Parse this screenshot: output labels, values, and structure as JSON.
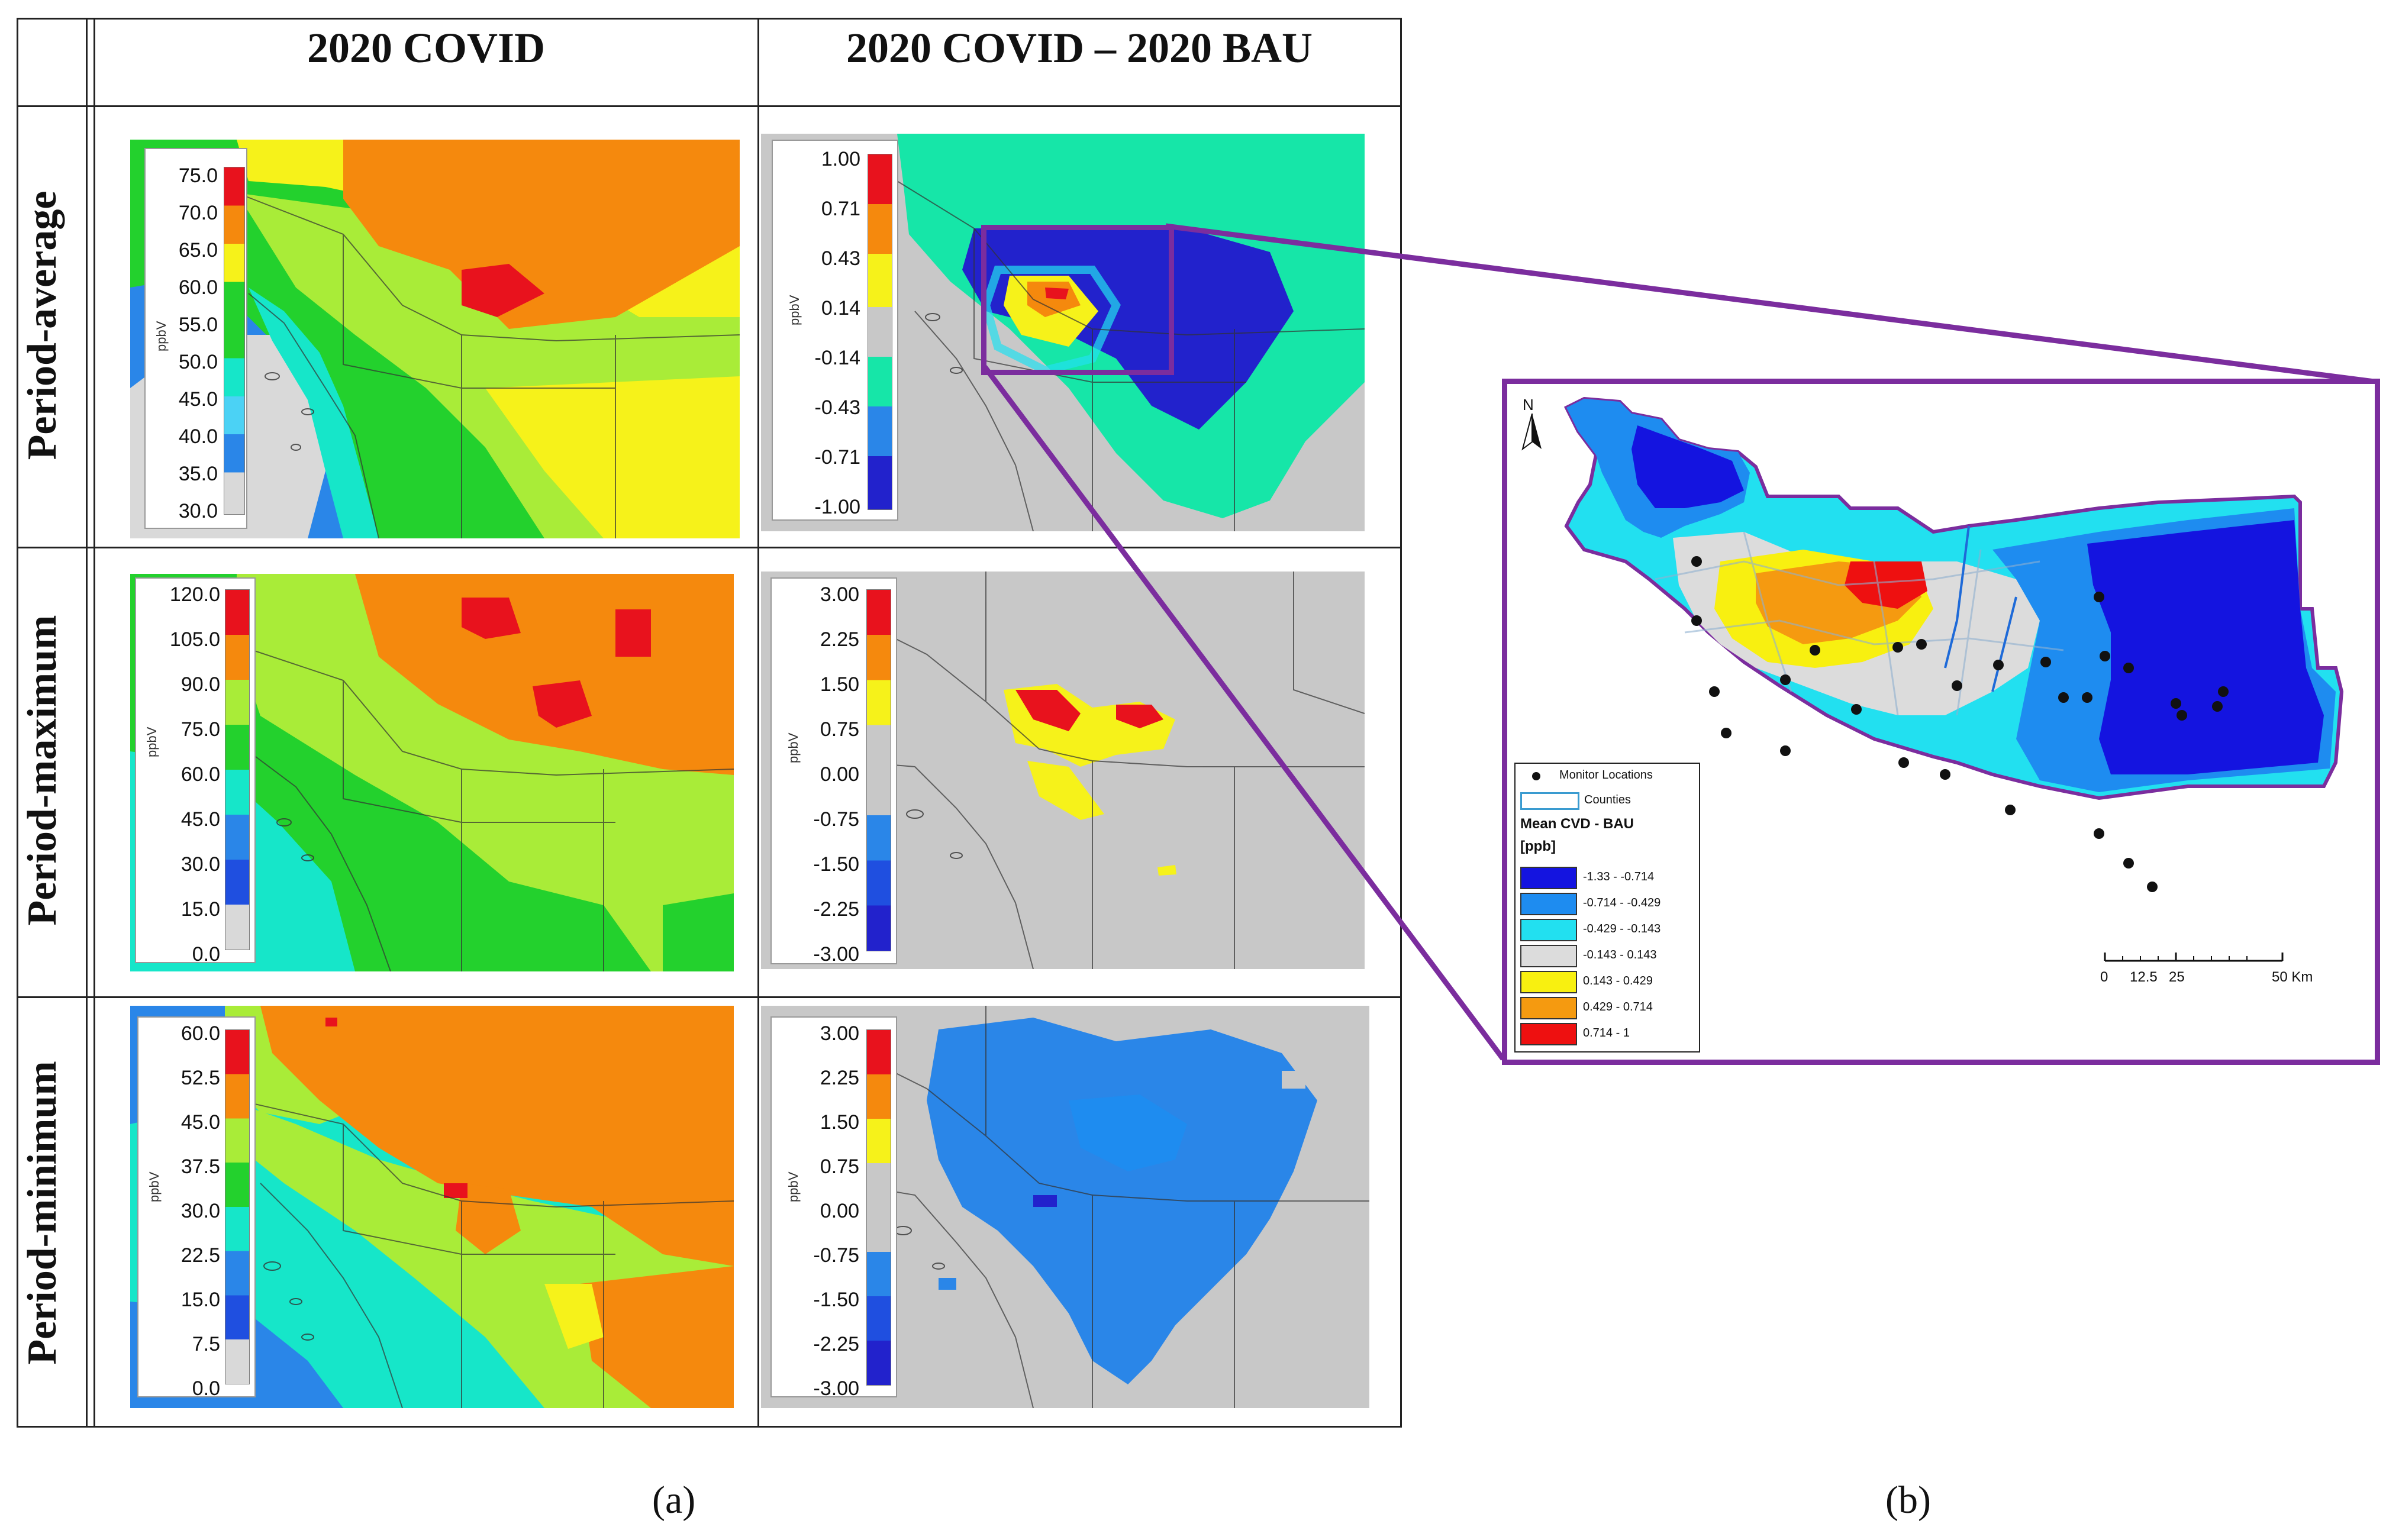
{
  "panel_a": {
    "column_headers": [
      "2020 COVID",
      "2020 COVID – 2020 BAU"
    ],
    "row_headers": [
      "Period-average",
      "Period-maximum",
      "Period-minimum"
    ],
    "unit_label": "ppbV",
    "legends": {
      "avg_covid": [
        "75.0",
        "70.0",
        "65.0",
        "60.0",
        "55.0",
        "50.0",
        "45.0",
        "40.0",
        "35.0",
        "30.0"
      ],
      "avg_diff": [
        "1.00",
        "0.71",
        "0.43",
        "0.14",
        "-0.14",
        "-0.43",
        "-0.71",
        "-1.00"
      ],
      "max_covid": [
        "120.0",
        "105.0",
        "90.0",
        "75.0",
        "60.0",
        "45.0",
        "30.0",
        "15.0",
        "0.0"
      ],
      "max_diff": [
        "3.00",
        "2.25",
        "1.50",
        "0.75",
        "0.00",
        "-0.75",
        "-1.50",
        "-2.25",
        "-3.00"
      ],
      "min_covid": [
        "60.0",
        "52.5",
        "45.0",
        "37.5",
        "30.0",
        "22.5",
        "15.0",
        "7.5",
        "0.0"
      ],
      "min_diff": [
        "3.00",
        "2.25",
        "1.50",
        "0.75",
        "0.00",
        "-0.75",
        "-1.50",
        "-2.25",
        "-3.00"
      ]
    },
    "covid_colors": [
      "#e8121d",
      "#f5890d",
      "#f6f21a",
      "#a9ec38",
      "#23d12d",
      "#16e6c9",
      "#4bd2f5",
      "#2a86e8",
      "#1f4fe0",
      "#d9d9d9"
    ],
    "diff_colors": [
      "#e8121d",
      "#f5890d",
      "#f6f21a",
      "#c8c8c8",
      "#2a86e8",
      "#1f4fe0",
      "#2222cc"
    ],
    "sub_label": "(a)"
  },
  "panel_b": {
    "north_label": "N",
    "legend": {
      "monitor_label": "Monitor Locations",
      "counties_label": "Counties",
      "title": "Mean CVD - BAU",
      "unit": "[ppb]",
      "classes": [
        {
          "label": "-1.33 - -0.714",
          "color": "#1414e0"
        },
        {
          "label": "-0.714 - -0.429",
          "color": "#1e8cf0"
        },
        {
          "label": "-0.429 - -0.143",
          "color": "#22e0f0"
        },
        {
          "label": "-0.143 - 0.143",
          "color": "#dcdcdc"
        },
        {
          "label": "0.143 - 0.429",
          "color": "#f8f010"
        },
        {
          "label": "0.429 - 0.714",
          "color": "#f59a10"
        },
        {
          "label": "0.714 - 1",
          "color": "#ee1010"
        }
      ]
    },
    "scale_ticks": [
      "0",
      "12.5",
      "25",
      "50 Km"
    ],
    "sub_label": "(b)"
  },
  "colors": {
    "inset_border": "#7b2d9e",
    "map_background_gray": "#c8c8c8"
  }
}
